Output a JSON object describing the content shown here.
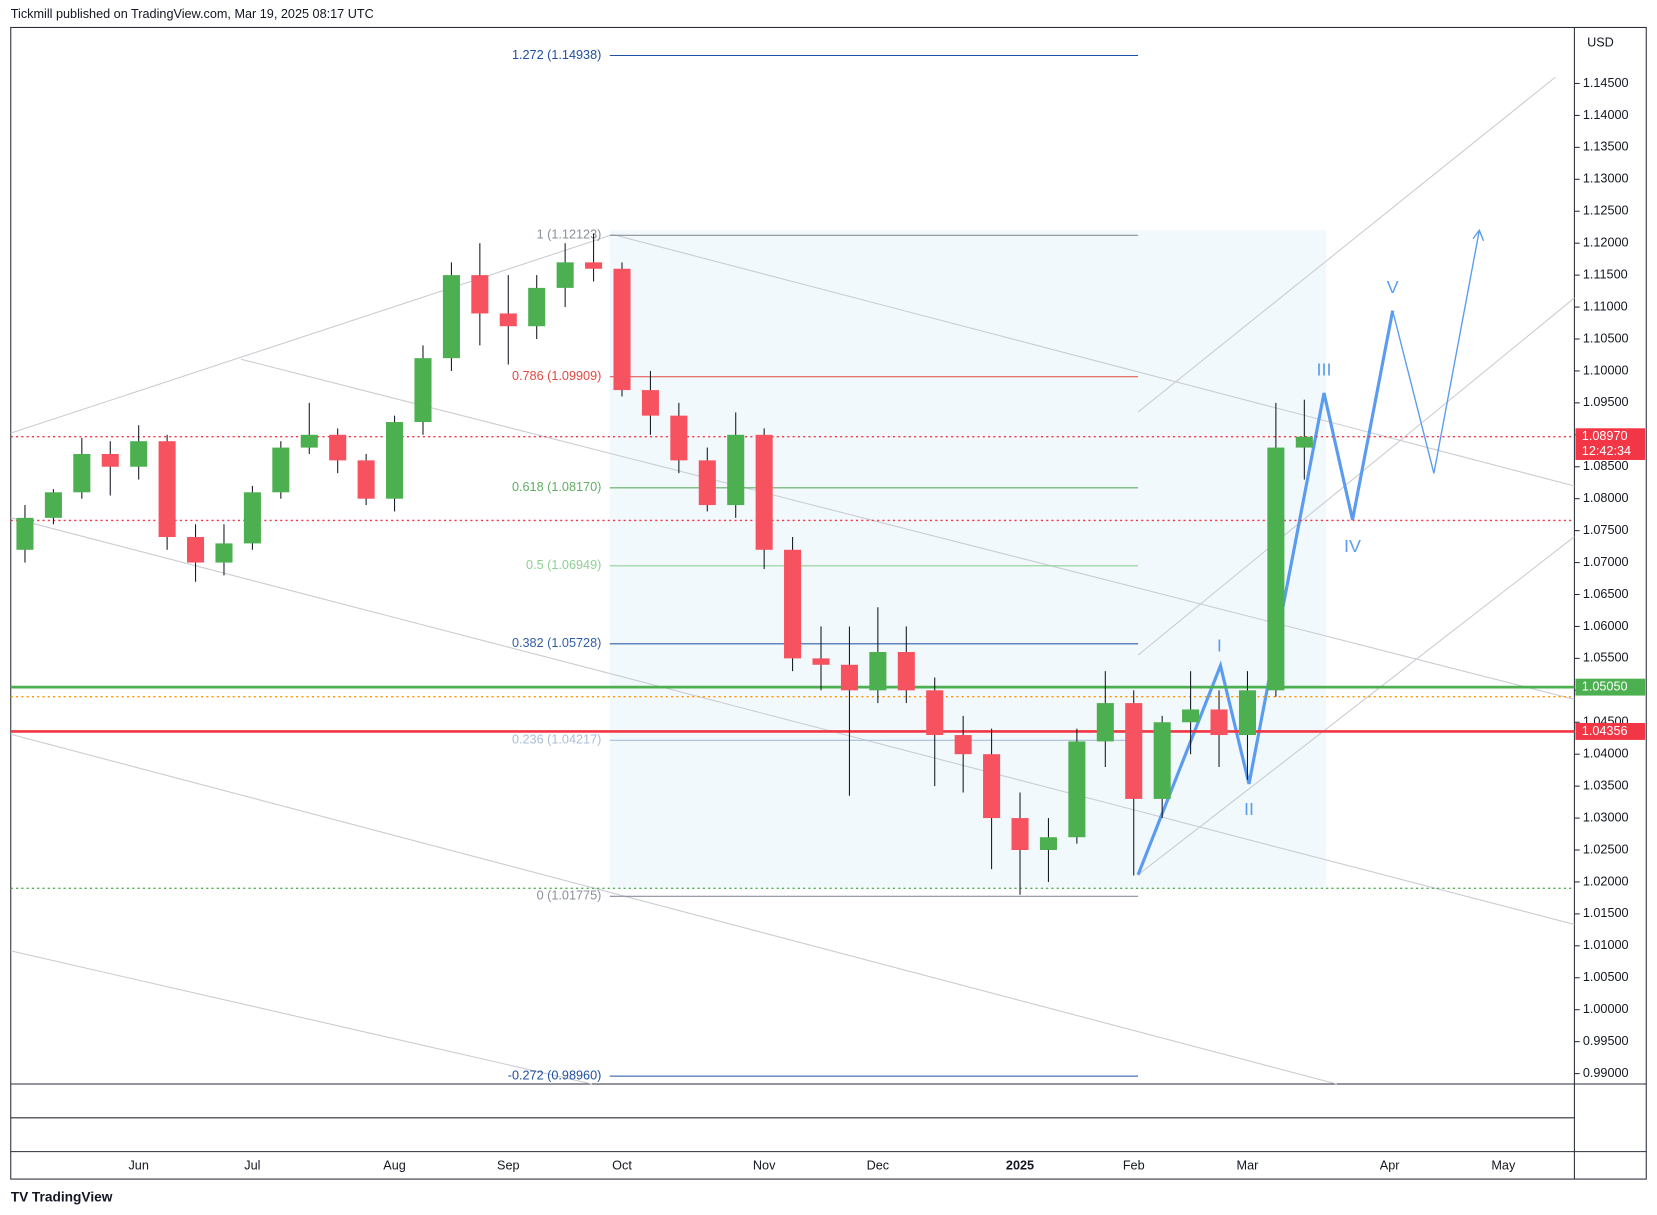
{
  "header": "Tickmill published on TradingView.com, Mar 19, 2025 08:17 UTC",
  "footer": "TradingView",
  "chart_data": {
    "type": "candlestick",
    "currency": "USD",
    "categories": [
      null,
      null,
      null,
      null,
      "Jun",
      null,
      null,
      null,
      "Jul",
      null,
      null,
      null,
      null,
      "Aug",
      null,
      null,
      null,
      "Sep",
      null,
      null,
      null,
      "Oct",
      null,
      null,
      null,
      null,
      "Nov",
      null,
      null,
      null,
      "Dec",
      null,
      null,
      null,
      null,
      "2025",
      null,
      null,
      null,
      "Feb",
      null,
      null,
      null,
      "Mar",
      null,
      null,
      null,
      null,
      "Apr",
      null,
      null,
      null,
      "May",
      null,
      null
    ],
    "open": [
      1.072,
      1.077,
      1.081,
      1.087,
      1.085,
      1.089,
      1.074,
      1.07,
      1.073,
      1.081,
      1.088,
      1.09,
      1.086,
      1.08,
      1.092,
      1.102,
      1.115,
      1.109,
      1.107,
      1.113,
      1.117,
      1.116,
      1.097,
      1.093,
      1.086,
      1.079,
      1.09,
      1.072,
      1.055,
      1.054,
      1.05,
      1.056,
      1.05,
      1.043,
      1.04,
      1.03,
      1.025,
      1.027,
      1.042,
      1.048,
      1.033,
      1.045,
      1.047,
      1.043,
      1.05,
      1.088,
      null,
      null,
      null,
      null,
      null,
      null,
      null,
      null,
      null
    ],
    "high": [
      1.079,
      1.0815,
      1.0895,
      1.089,
      1.0915,
      1.09,
      1.076,
      1.076,
      1.082,
      1.089,
      1.095,
      1.091,
      1.087,
      1.093,
      1.104,
      1.117,
      1.12,
      1.115,
      1.115,
      1.12,
      1.1215,
      1.117,
      1.1,
      1.095,
      1.088,
      1.0935,
      1.091,
      1.074,
      1.06,
      1.06,
      1.063,
      1.06,
      1.052,
      1.046,
      1.044,
      1.034,
      1.03,
      1.044,
      1.053,
      1.05,
      1.046,
      1.053,
      1.05,
      1.053,
      1.095,
      1.0955,
      null,
      null,
      null,
      null,
      null,
      null,
      null,
      null,
      null
    ],
    "low": [
      1.07,
      1.076,
      1.08,
      1.0805,
      1.083,
      1.072,
      1.067,
      1.068,
      1.072,
      1.08,
      1.087,
      1.084,
      1.079,
      1.078,
      1.09,
      1.1,
      1.104,
      1.101,
      1.105,
      1.11,
      1.114,
      1.096,
      1.09,
      1.084,
      1.078,
      1.077,
      1.069,
      1.053,
      1.05,
      1.0335,
      1.048,
      1.048,
      1.035,
      1.034,
      1.022,
      1.018,
      1.02,
      1.026,
      1.038,
      1.021,
      1.03,
      1.04,
      1.038,
      1.036,
      1.049,
      1.083,
      null,
      null,
      null,
      null,
      null,
      null,
      null,
      null,
      null
    ],
    "close": [
      1.077,
      1.081,
      1.087,
      1.085,
      1.089,
      1.074,
      1.07,
      1.073,
      1.081,
      1.088,
      1.09,
      1.086,
      1.08,
      1.092,
      1.102,
      1.115,
      1.109,
      1.107,
      1.113,
      1.117,
      1.116,
      1.097,
      1.093,
      1.086,
      1.079,
      1.09,
      1.072,
      1.055,
      1.054,
      1.05,
      1.056,
      1.05,
      1.043,
      1.04,
      1.03,
      1.025,
      1.027,
      1.042,
      1.048,
      1.033,
      1.045,
      1.047,
      1.043,
      1.05,
      1.088,
      1.0897,
      null,
      null,
      null,
      null,
      null,
      null,
      null,
      null,
      null
    ],
    "up_color": "#4caf50",
    "down_color": "#f7525f",
    "ylim": [
      0.98837,
      1.15377
    ],
    "yticks": [
      {
        "value": 0.99,
        "label": "0.99000"
      },
      {
        "value": 0.995,
        "label": "0.99500"
      },
      {
        "value": 1.0,
        "label": "1.00000"
      },
      {
        "value": 1.005,
        "label": "1.00500"
      },
      {
        "value": 1.01,
        "label": "1.01000"
      },
      {
        "value": 1.015,
        "label": "1.01500"
      },
      {
        "value": 1.02,
        "label": "1.02000"
      },
      {
        "value": 1.025,
        "label": "1.02500"
      },
      {
        "value": 1.03,
        "label": "1.03000"
      },
      {
        "value": 1.035,
        "label": "1.03500"
      },
      {
        "value": 1.04,
        "label": "1.04000"
      },
      {
        "value": 1.045,
        "label": "1.04500"
      },
      {
        "value": 1.05,
        "label": "1.05000"
      },
      {
        "value": 1.055,
        "label": "1.05500"
      },
      {
        "value": 1.06,
        "label": "1.06000"
      },
      {
        "value": 1.065,
        "label": "1.06500"
      },
      {
        "value": 1.07,
        "label": "1.07000"
      },
      {
        "value": 1.075,
        "label": "1.07500"
      },
      {
        "value": 1.08,
        "label": "1.08000"
      },
      {
        "value": 1.085,
        "label": "1.08500"
      },
      {
        "value": 1.09,
        "label": "1.09000"
      },
      {
        "value": 1.095,
        "label": "1.09500"
      },
      {
        "value": 1.1,
        "label": "1.10000"
      },
      {
        "value": 1.105,
        "label": "1.10500"
      },
      {
        "value": 1.11,
        "label": "1.11000"
      },
      {
        "value": 1.115,
        "label": "1.11500"
      },
      {
        "value": 1.12,
        "label": "1.12000"
      },
      {
        "value": 1.125,
        "label": "1.12500"
      },
      {
        "value": 1.13,
        "label": "1.13000"
      },
      {
        "value": 1.135,
        "label": "1.13500"
      },
      {
        "value": 1.14,
        "label": "1.14000"
      },
      {
        "value": 1.145,
        "label": "1.14500"
      }
    ],
    "fib_levels": [
      {
        "label": "1.272 (1.14938)",
        "value": 1.14938,
        "color": "#1e4fa0"
      },
      {
        "label": "1 (1.12123)",
        "value": 1.12123,
        "color": "#8a8f99"
      },
      {
        "label": "0.786 (1.09909)",
        "value": 1.09909,
        "color": "#e5483f"
      },
      {
        "label": "0.618 (1.08170)",
        "value": 1.0817,
        "color": "#5fae62"
      },
      {
        "label": "0.5 (1.06949)",
        "value": 1.06949,
        "color": "#8fcf93"
      },
      {
        "label": "0.382 (1.05728)",
        "value": 1.05728,
        "color": "#2f5ea8"
      },
      {
        "label": "0.236 (1.04217)",
        "value": 1.04217,
        "color": "#a9bfd9"
      },
      {
        "label": "0 (1.01775)",
        "value": 1.01775,
        "color": "#8a8f99"
      },
      {
        "label": "-0.272 (0.98960)",
        "value": 0.9896,
        "color": "#1e4fa0"
      }
    ],
    "levels": [
      {
        "value": 1.0897,
        "color": "#f23645",
        "style": "dotted",
        "label": "1.08970",
        "sub": "12:42:34"
      },
      {
        "value": 1.0766,
        "color": "#f23645",
        "style": "dotted"
      },
      {
        "value": 1.0505,
        "color": "#4caf50",
        "style": "solid",
        "label": "1.05050"
      },
      {
        "value": 1.049,
        "color": "#ff9800",
        "style": "dotted"
      },
      {
        "value": 1.04356,
        "color": "#f23645",
        "style": "solid",
        "label": "1.04356"
      },
      {
        "value": 1.019,
        "color": "#4caf50",
        "style": "dotted"
      }
    ],
    "waves": [
      "I",
      "II",
      "III",
      "IV",
      "V"
    ]
  }
}
